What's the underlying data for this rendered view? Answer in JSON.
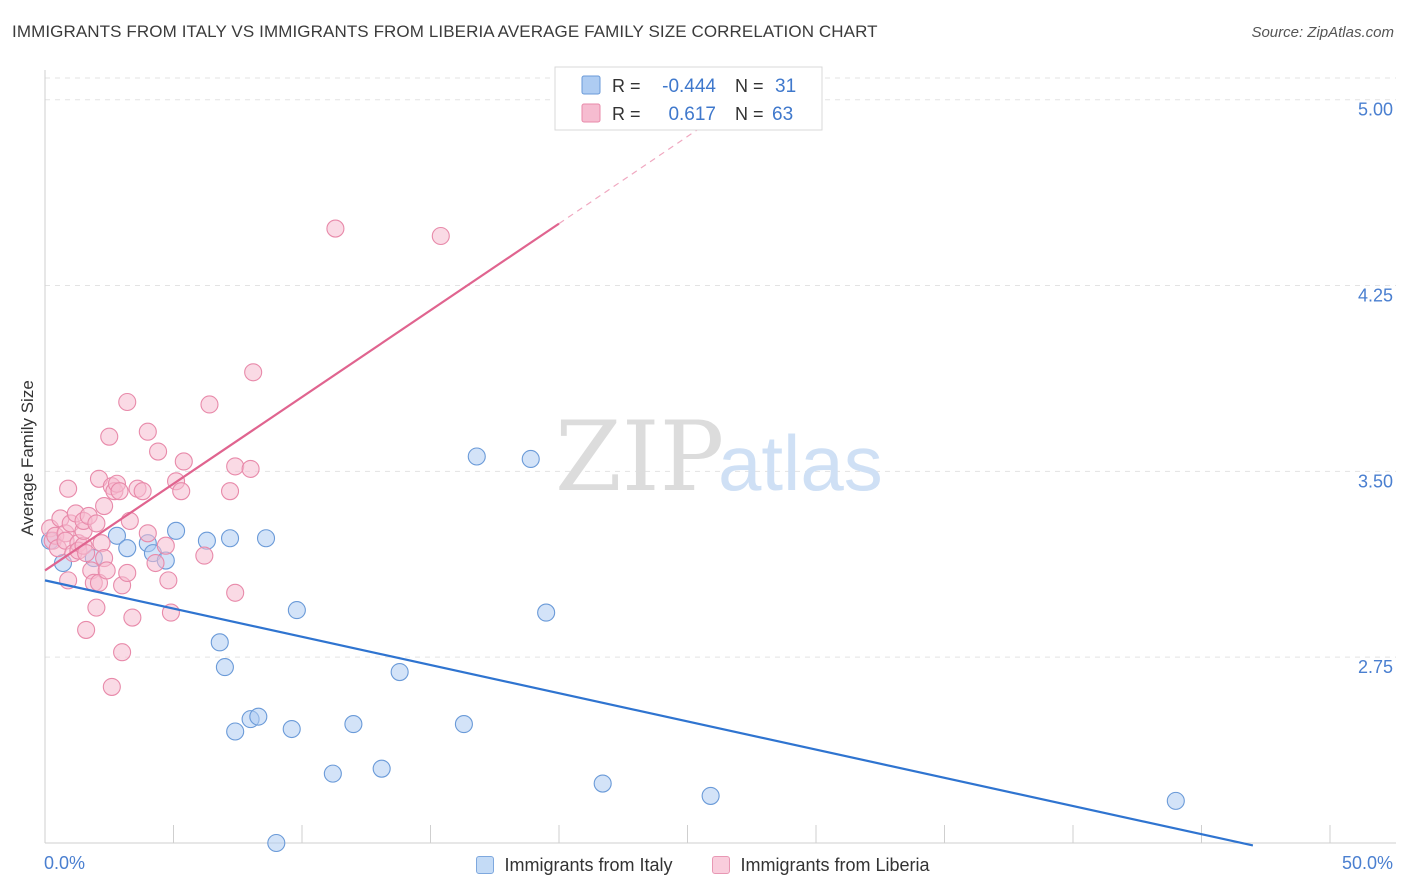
{
  "title": "IMMIGRANTS FROM ITALY VS IMMIGRANTS FROM LIBERIA AVERAGE FAMILY SIZE CORRELATION CHART",
  "source": "Source: ZipAtlas.com",
  "watermark": {
    "zip": "ZIP",
    "atlas": "atlas"
  },
  "colors": {
    "italy_fill": "#aeccf2",
    "italy_stroke": "#6a9ad8",
    "italy_line": "#2f74d0",
    "liberia_fill": "#f6bcd0",
    "liberia_stroke": "#e88aaa",
    "liberia_line": "#e0648f",
    "axis_label": "#4a7fd0",
    "grid": "#e3e3e3"
  },
  "stats_legend": {
    "rows": [
      {
        "r_label": "R =",
        "r_value": "-0.444",
        "n_label": "N =",
        "n_value": "31"
      },
      {
        "r_label": "R =",
        "r_value": "0.617",
        "n_label": "N =",
        "n_value": "63"
      }
    ]
  },
  "legend": {
    "italy": "Immigrants from Italy",
    "liberia": "Immigrants from Liberia"
  },
  "chart_data": {
    "type": "scatter",
    "title": "IMMIGRANTS FROM ITALY VS IMMIGRANTS FROM LIBERIA AVERAGE FAMILY SIZE CORRELATION CHART",
    "xlabel": "",
    "ylabel": "Average Family Size",
    "xlim": [
      0,
      50
    ],
    "ylim": [
      2.0,
      5.12
    ],
    "x_tick_labels": [
      "0.0%",
      "50.0%"
    ],
    "y_ticks": [
      2.75,
      3.5,
      4.25,
      5.0
    ],
    "y_tick_labels": [
      "2.75",
      "3.50",
      "4.25",
      "5.00"
    ],
    "grid": "horizontal dashed",
    "legend_position": "bottom",
    "series": [
      {
        "name": "Immigrants from Italy",
        "r": -0.444,
        "n": 31,
        "points": [
          [
            0.2,
            3.22
          ],
          [
            0.7,
            3.13
          ],
          [
            1.9,
            3.15
          ],
          [
            2.8,
            3.24
          ],
          [
            3.2,
            3.19
          ],
          [
            4.0,
            3.21
          ],
          [
            4.2,
            3.17
          ],
          [
            4.7,
            3.14
          ],
          [
            5.1,
            3.26
          ],
          [
            6.3,
            3.22
          ],
          [
            7.0,
            2.71
          ],
          [
            7.2,
            3.23
          ],
          [
            6.8,
            2.81
          ],
          [
            7.4,
            2.45
          ],
          [
            8.0,
            2.5
          ],
          [
            8.3,
            2.51
          ],
          [
            8.6,
            3.23
          ],
          [
            9.8,
            2.94
          ],
          [
            9.6,
            2.46
          ],
          [
            11.2,
            2.28
          ],
          [
            12.0,
            2.48
          ],
          [
            13.1,
            2.3
          ],
          [
            13.8,
            2.69
          ],
          [
            16.3,
            2.48
          ],
          [
            16.8,
            3.56
          ],
          [
            18.9,
            3.55
          ],
          [
            19.5,
            2.93
          ],
          [
            21.7,
            2.24
          ],
          [
            25.9,
            2.19
          ],
          [
            9.0,
            2.0
          ],
          [
            44.0,
            2.17
          ]
        ],
        "trend": {
          "x": [
            0,
            47.0
          ],
          "y": [
            3.06,
            1.99
          ]
        }
      },
      {
        "name": "Immigrants from Liberia",
        "r": 0.617,
        "n": 63,
        "points": [
          [
            0.2,
            3.27
          ],
          [
            0.3,
            3.22
          ],
          [
            0.4,
            3.24
          ],
          [
            0.5,
            3.19
          ],
          [
            0.6,
            3.31
          ],
          [
            0.8,
            3.25
          ],
          [
            0.8,
            3.22
          ],
          [
            1.0,
            3.29
          ],
          [
            0.9,
            3.43
          ],
          [
            1.1,
            3.17
          ],
          [
            1.2,
            3.33
          ],
          [
            1.3,
            3.21
          ],
          [
            1.3,
            3.18
          ],
          [
            1.5,
            3.2
          ],
          [
            1.5,
            3.26
          ],
          [
            1.6,
            3.17
          ],
          [
            1.5,
            3.3
          ],
          [
            1.6,
            2.86
          ],
          [
            1.7,
            3.32
          ],
          [
            1.8,
            3.1
          ],
          [
            1.9,
            3.05
          ],
          [
            2.0,
            2.95
          ],
          [
            2.0,
            3.29
          ],
          [
            2.1,
            3.47
          ],
          [
            2.1,
            3.05
          ],
          [
            2.2,
            3.21
          ],
          [
            2.3,
            3.36
          ],
          [
            2.3,
            3.15
          ],
          [
            2.4,
            3.1
          ],
          [
            2.5,
            3.64
          ],
          [
            2.6,
            2.63
          ],
          [
            2.6,
            3.44
          ],
          [
            2.7,
            3.42
          ],
          [
            2.8,
            3.45
          ],
          [
            2.9,
            3.42
          ],
          [
            3.0,
            3.04
          ],
          [
            3.0,
            2.77
          ],
          [
            3.2,
            3.09
          ],
          [
            3.2,
            3.78
          ],
          [
            3.3,
            3.3
          ],
          [
            3.4,
            2.91
          ],
          [
            3.6,
            3.43
          ],
          [
            3.8,
            3.42
          ],
          [
            4.0,
            3.25
          ],
          [
            4.0,
            3.66
          ],
          [
            4.3,
            3.13
          ],
          [
            4.4,
            3.58
          ],
          [
            4.7,
            3.2
          ],
          [
            4.8,
            3.06
          ],
          [
            4.9,
            2.93
          ],
          [
            5.1,
            3.46
          ],
          [
            5.3,
            3.42
          ],
          [
            5.4,
            3.54
          ],
          [
            6.2,
            3.16
          ],
          [
            6.4,
            3.77
          ],
          [
            7.2,
            3.42
          ],
          [
            7.4,
            3.52
          ],
          [
            7.4,
            3.01
          ],
          [
            8.0,
            3.51
          ],
          [
            8.1,
            3.9
          ],
          [
            11.3,
            4.48
          ],
          [
            15.4,
            4.45
          ],
          [
            0.9,
            3.06
          ]
        ],
        "trend": {
          "x": [
            0,
            20.0
          ],
          "y": [
            3.1,
            4.5
          ]
        },
        "trend_extension": {
          "x": [
            20.0,
            25.4
          ],
          "y": [
            4.5,
            4.88
          ]
        }
      }
    ]
  }
}
